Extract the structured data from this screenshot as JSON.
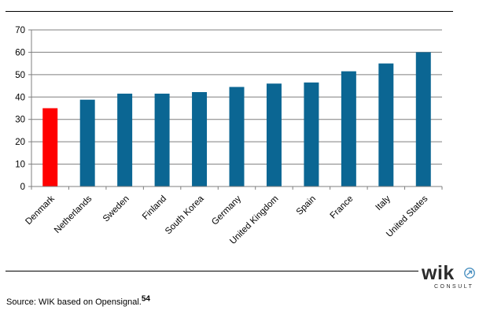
{
  "chart_data": {
    "type": "bar",
    "categories": [
      "Denmark",
      "Netherlands",
      "Sweden",
      "Finland",
      "South Korea",
      "Germany",
      "United Kingdom",
      "Spain",
      "France",
      "Italy",
      "United States"
    ],
    "values": [
      35,
      38.8,
      41.5,
      41.5,
      42.2,
      44.5,
      46,
      46.5,
      51.5,
      55,
      60
    ],
    "highlight_index": 0,
    "ylim": [
      0,
      70
    ],
    "yticks": [
      0,
      10,
      20,
      30,
      40,
      50,
      60,
      70
    ],
    "grid": true,
    "title": "",
    "xlabel": "",
    "ylabel": "",
    "colors": {
      "bar": "#0b6693",
      "highlight": "#ff0000",
      "grid": "#7f7f7f",
      "axis": "#7f7f7f"
    }
  },
  "footer": {
    "source_text": "Source: WIK based on Opensignal.",
    "footnote_number": "54"
  },
  "logo": {
    "name": "wik",
    "tagline": "CONSULT",
    "icon": "arrow-icon"
  }
}
